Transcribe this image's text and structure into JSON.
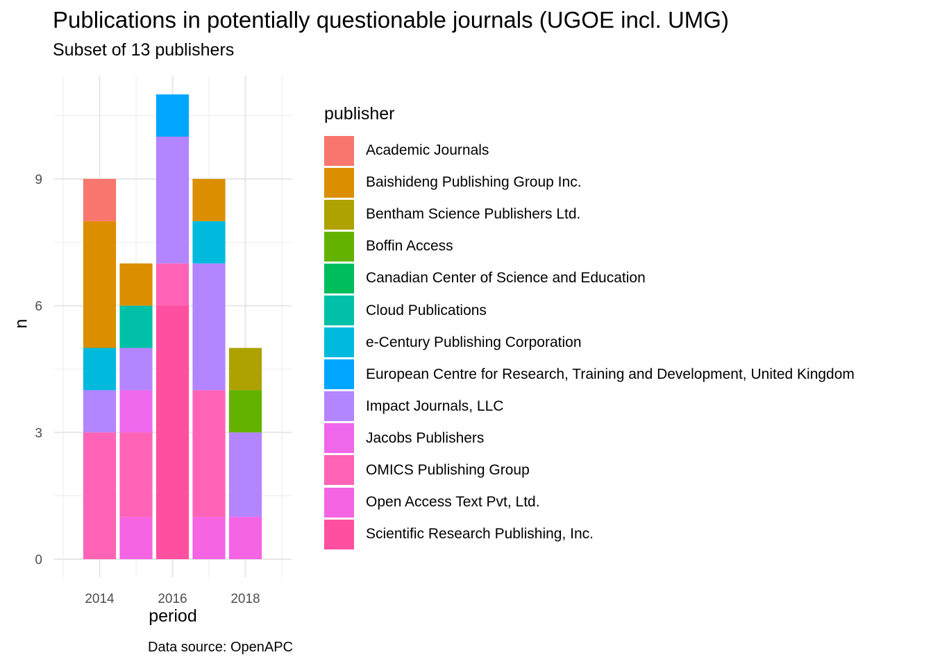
{
  "chart_data": {
    "type": "bar",
    "stacked": true,
    "title": "Publications in potentially questionable journals (UGOE incl. UMG)",
    "subtitle": "Subset of 13 publishers",
    "xlabel": "period",
    "ylabel": "n",
    "caption": "Data source: OpenAPC",
    "legend_title": "publisher",
    "legend_position": "right",
    "grid": true,
    "xlim": [
      2013,
      2019
    ],
    "ylim": [
      0,
      11
    ],
    "xticks": [
      2014,
      2016,
      2018
    ],
    "yticks": [
      0,
      3,
      6,
      9
    ],
    "categories": [
      2014,
      2015,
      2016,
      2017,
      2018
    ],
    "series": [
      {
        "name": "Academic Journals",
        "color": "#F8766D",
        "values": [
          1,
          0,
          0,
          0,
          0
        ]
      },
      {
        "name": "Baishideng Publishing Group Inc.",
        "color": "#DB8E00",
        "values": [
          3,
          1,
          0,
          1,
          0
        ]
      },
      {
        "name": "Bentham Science Publishers Ltd.",
        "color": "#AEA200",
        "values": [
          0,
          0,
          0,
          0,
          1
        ]
      },
      {
        "name": "Boffin Access",
        "color": "#64B200",
        "values": [
          0,
          0,
          0,
          0,
          1
        ]
      },
      {
        "name": "Canadian Center of Science and Education",
        "color": "#00BD5C",
        "values": [
          0,
          0,
          0,
          0,
          0
        ]
      },
      {
        "name": "Cloud Publications",
        "color": "#00C1A7",
        "values": [
          0,
          1,
          0,
          0,
          0
        ]
      },
      {
        "name": "e-Century Publishing Corporation",
        "color": "#00BADE",
        "values": [
          1,
          0,
          0,
          1,
          0
        ]
      },
      {
        "name": "European Centre for Research, Training and Development, United Kingdom",
        "color": "#00A6FF",
        "values": [
          0,
          0,
          1,
          0,
          0
        ]
      },
      {
        "name": "Impact Journals, LLC",
        "color": "#B385FF",
        "values": [
          1,
          1,
          3,
          3,
          2
        ]
      },
      {
        "name": "Jacobs Publishers",
        "color": "#EF67EB",
        "values": [
          0,
          1,
          0,
          0,
          0
        ]
      },
      {
        "name": "OMICS Publishing Group",
        "color": "#FF63B6",
        "values": [
          3,
          2,
          1,
          3,
          0
        ]
      },
      {
        "name": "Open Access Text Pvt, Ltd.",
        "color": "#F564E3",
        "values": [
          0,
          1,
          0,
          1,
          1
        ]
      },
      {
        "name": "Scientific Research Publishing, Inc.",
        "color": "#FF4FA0",
        "values": [
          0,
          0,
          6,
          0,
          0
        ]
      }
    ]
  }
}
